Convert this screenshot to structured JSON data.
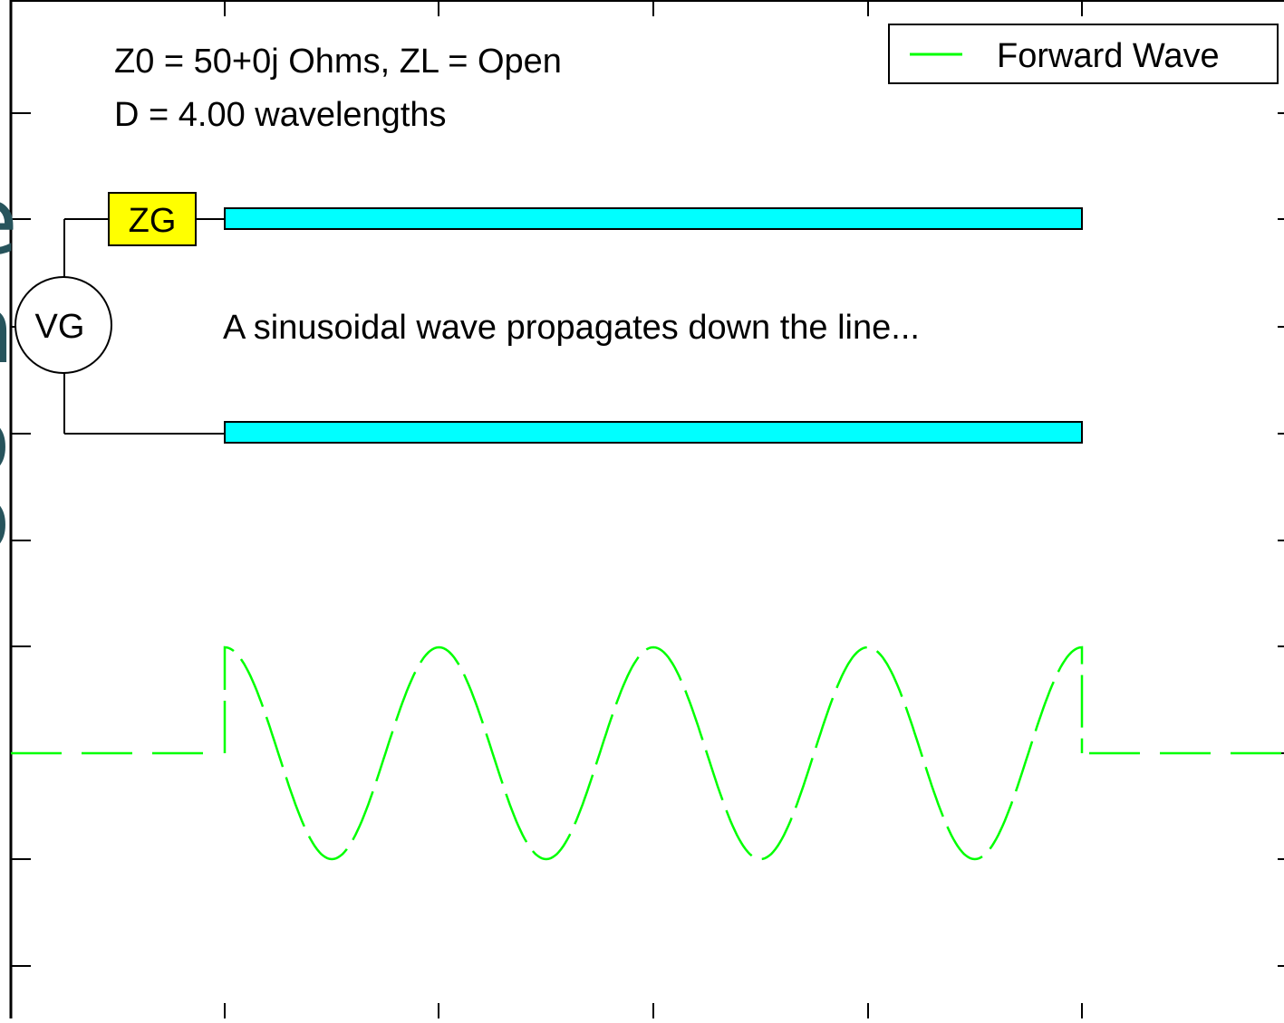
{
  "annotations": {
    "line1": "Z0 = 50+0j Ohms,  ZL = Open",
    "line2": "D = 4.00 wavelengths",
    "caption": "A sinusoidal wave propagates down the line..."
  },
  "circuit": {
    "generator_impedance_label": "ZG",
    "generator_source_label": "VG",
    "generator_impedance_color": "#ffff00",
    "line_color": "#00ffff"
  },
  "legend": {
    "entries": [
      {
        "label": "Forward Wave",
        "color": "#00ff00"
      }
    ]
  },
  "background_fragments": [
    "e",
    "n",
    "o",
    "o"
  ],
  "chart_data": {
    "type": "line",
    "series": [
      {
        "name": "Forward Wave",
        "color": "#00ff00",
        "style": "dashed",
        "wavelengths_on_line": 4,
        "amplitude": 1,
        "phase_at_generator": "cosine peak",
        "outside_line_value": 0
      }
    ],
    "grid": false,
    "legend_position": "top-right"
  }
}
